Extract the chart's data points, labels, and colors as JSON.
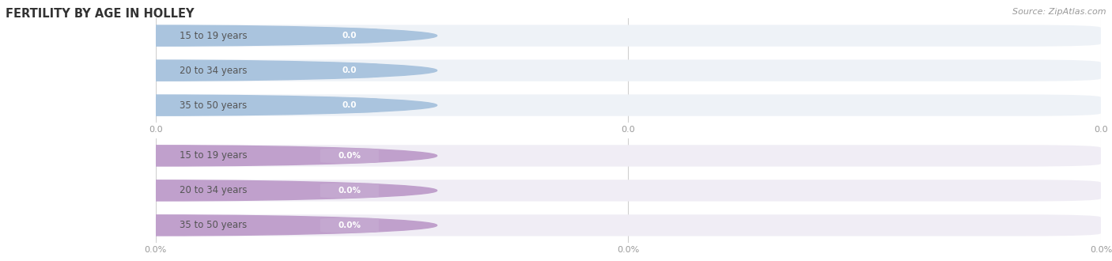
{
  "title": "FERTILITY BY AGE IN HOLLEY",
  "source": "Source: ZipAtlas.com",
  "top_group": {
    "labels": [
      "15 to 19 years",
      "20 to 34 years",
      "35 to 50 years"
    ],
    "values": [
      0.0,
      0.0,
      0.0
    ],
    "value_format": "top",
    "bar_bg_color": "#eef2f7",
    "circle_color": "#aac4de",
    "value_badge_color": "#aac4de",
    "label_text_color": "#555555",
    "value_text_color": "#ffffff"
  },
  "bottom_group": {
    "labels": [
      "15 to 19 years",
      "20 to 34 years",
      "35 to 50 years"
    ],
    "values": [
      0.0,
      0.0,
      0.0
    ],
    "value_format": "bottom",
    "bar_bg_color": "#f0edf5",
    "circle_color": "#c0a0cc",
    "value_badge_color": "#c4a8d0",
    "label_text_color": "#555555",
    "value_text_color": "#ffffff"
  },
  "axis_tick_color": "#aaaaaa",
  "grid_color": "#d0d0d0",
  "background_color": "#ffffff",
  "figsize": [
    14.06,
    3.3
  ],
  "dpi": 100
}
